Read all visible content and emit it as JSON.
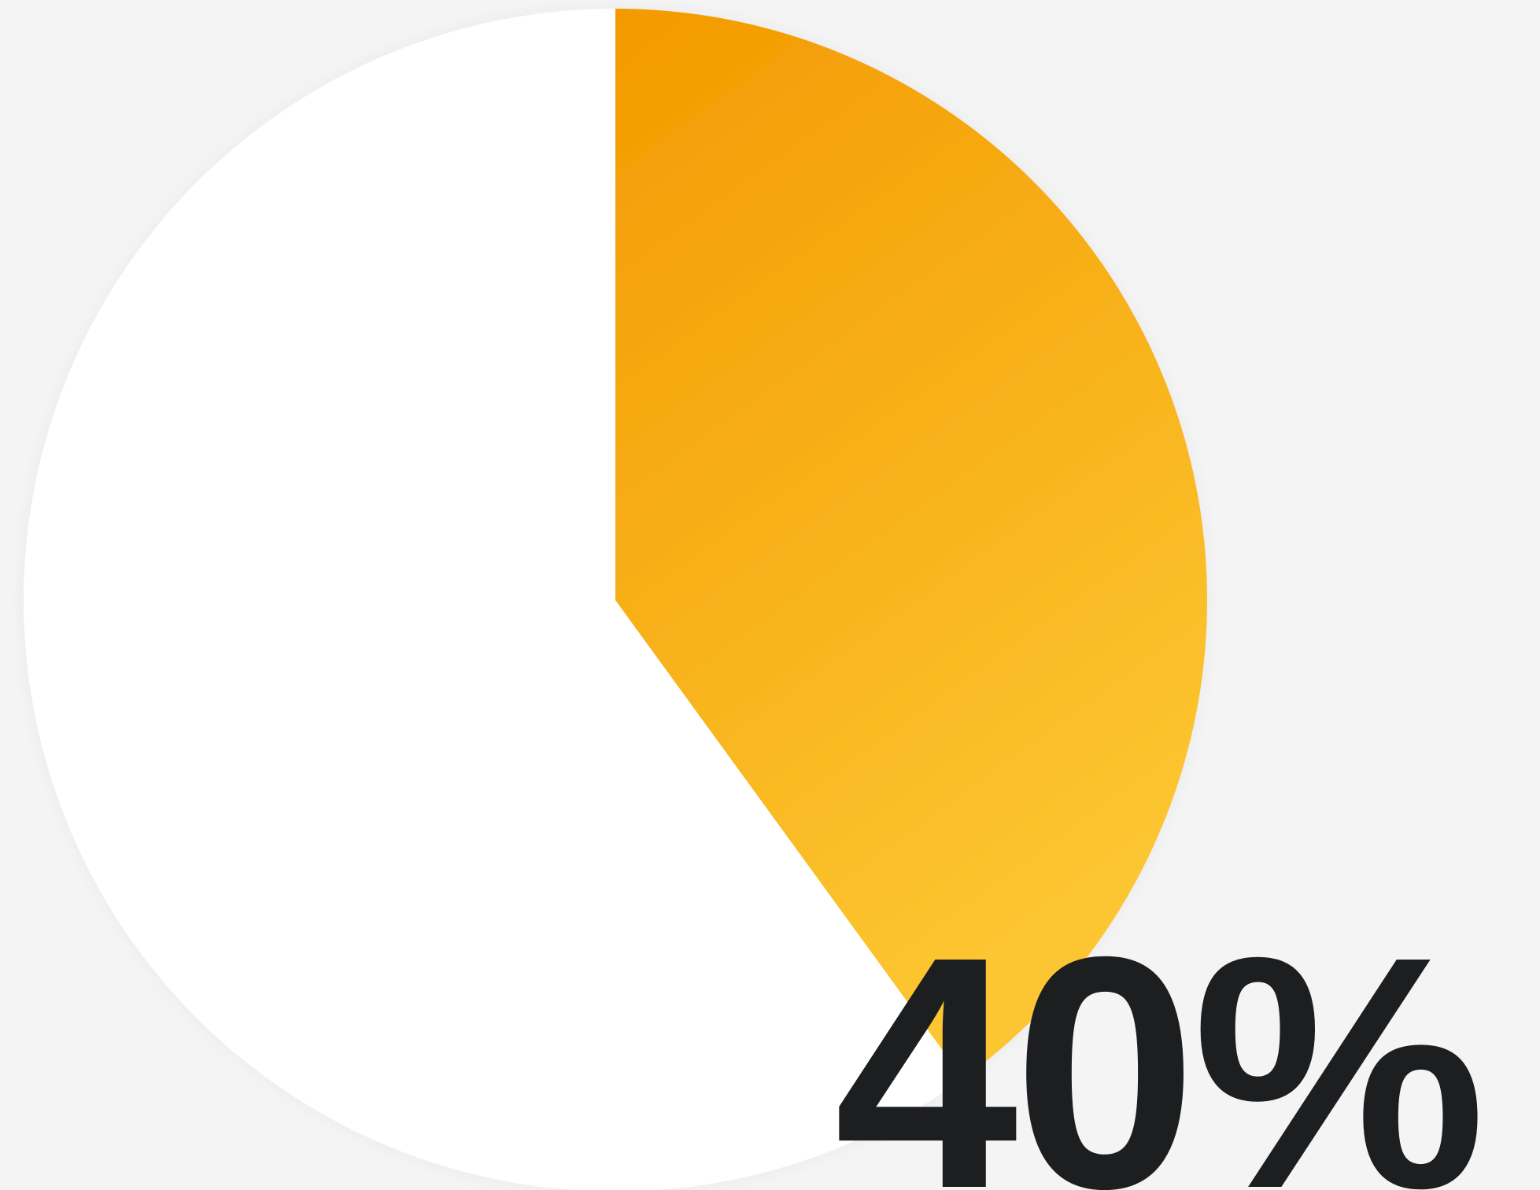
{
  "chart_data": {
    "type": "pie",
    "values": [
      40,
      60
    ],
    "colors": [
      "#f39c00",
      "#ffffff"
    ],
    "gradient_colors": [
      "#f39a00",
      "#fcc631"
    ],
    "background": "#f4f4f4",
    "data_label": "40%",
    "title": ""
  }
}
